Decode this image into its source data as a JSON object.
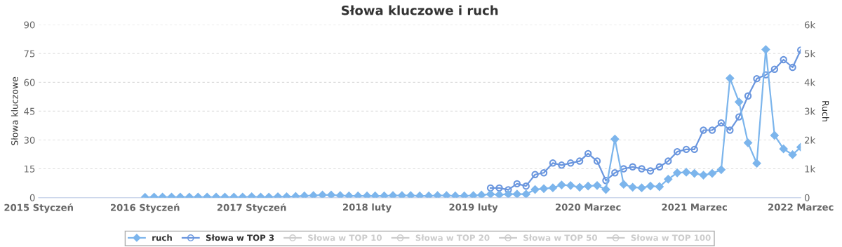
{
  "chart_data": {
    "type": "line",
    "title": "Słowa kluczowe i ruch",
    "ylabel": "Słowa kluczowe",
    "y2label": "Ruch",
    "xlim": [
      "2015-01",
      "2022-03"
    ],
    "xticks": [
      {
        "value": "2015-01",
        "label": "2015 Styczeń"
      },
      {
        "value": "2016-01",
        "label": "2016 Styczeń"
      },
      {
        "value": "2017-01",
        "label": "2017 Styczeń"
      },
      {
        "value": "2018-02",
        "label": "2018 luty"
      },
      {
        "value": "2019-02",
        "label": "2019 luty"
      },
      {
        "value": "2020-03",
        "label": "2020 Marzec"
      },
      {
        "value": "2021-03",
        "label": "2021 Marzec"
      },
      {
        "value": "2022-03",
        "label": "2022 Marzec"
      }
    ],
    "ylim": [
      0,
      90
    ],
    "yticks": [
      0,
      15,
      30,
      45,
      60,
      75,
      90
    ],
    "y2lim": [
      0,
      6000
    ],
    "y2ticks": [
      0,
      {
        "value": 1000,
        "label": "1k"
      },
      {
        "value": 2000,
        "label": "2k"
      },
      {
        "value": 3000,
        "label": "3k"
      },
      {
        "value": 4000,
        "label": "4k"
      },
      {
        "value": 5000,
        "label": "5k"
      },
      {
        "value": 6000,
        "label": "6k"
      }
    ],
    "grid": "y",
    "legend": "bottom",
    "series": [
      {
        "name": "ruch",
        "color": "#7cb5ec",
        "axis": "y2",
        "marker": "diamond",
        "x": [
          "2016-01",
          "2016-02",
          "2016-03",
          "2016-04",
          "2016-05",
          "2016-06",
          "2016-07",
          "2016-08",
          "2016-09",
          "2016-10",
          "2016-11",
          "2016-12",
          "2017-01",
          "2017-02",
          "2017-03",
          "2017-04",
          "2017-05",
          "2017-06",
          "2017-07",
          "2017-08",
          "2017-09",
          "2017-10",
          "2017-11",
          "2017-12",
          "2018-01",
          "2018-02",
          "2018-03",
          "2018-04",
          "2018-05",
          "2018-06",
          "2018-07",
          "2018-08",
          "2018-09",
          "2018-10",
          "2018-11",
          "2018-12",
          "2019-01",
          "2019-02",
          "2019-03",
          "2019-04",
          "2019-05",
          "2019-06",
          "2019-07",
          "2019-08",
          "2019-09",
          "2019-10",
          "2019-11",
          "2019-12",
          "2020-01",
          "2020-02",
          "2020-03",
          "2020-04",
          "2020-05",
          "2020-06",
          "2020-07",
          "2020-08",
          "2020-09",
          "2020-10",
          "2020-11",
          "2020-12",
          "2021-01",
          "2021-02",
          "2021-03",
          "2021-04",
          "2021-05",
          "2021-06",
          "2021-07",
          "2021-08",
          "2021-09",
          "2021-10",
          "2021-11",
          "2021-12",
          "2022-01",
          "2022-02",
          "2022-03"
        ],
        "values": [
          10,
          20,
          20,
          20,
          20,
          20,
          20,
          20,
          20,
          20,
          20,
          20,
          30,
          20,
          20,
          30,
          30,
          40,
          60,
          70,
          90,
          90,
          70,
          60,
          60,
          60,
          60,
          60,
          70,
          70,
          70,
          60,
          60,
          70,
          70,
          60,
          60,
          70,
          90,
          120,
          100,
          120,
          120,
          120,
          280,
          310,
          340,
          440,
          420,
          360,
          400,
          420,
          280,
          2030,
          460,
          360,
          340,
          400,
          380,
          640,
          860,
          880,
          840,
          780,
          840,
          970,
          4140,
          3320,
          1900,
          1190,
          5140,
          2160,
          1690,
          1490,
          1750
        ]
      },
      {
        "name": "Słowa w TOP 3",
        "color": "#6a96de",
        "axis": "y",
        "marker": "circle",
        "x": [
          "2019-04",
          "2019-05",
          "2019-06",
          "2019-07",
          "2019-08",
          "2019-09",
          "2019-10",
          "2019-11",
          "2019-12",
          "2020-01",
          "2020-02",
          "2020-03",
          "2020-04",
          "2020-05",
          "2020-06",
          "2020-07",
          "2020-08",
          "2020-09",
          "2020-10",
          "2020-11",
          "2020-12",
          "2021-01",
          "2021-02",
          "2021-03",
          "2021-04",
          "2021-05",
          "2021-06",
          "2021-07",
          "2021-08",
          "2021-09",
          "2021-10",
          "2021-11",
          "2021-12",
          "2022-01",
          "2022-02",
          "2022-03"
        ],
        "values": [
          5.0,
          5.0,
          4.1,
          7.2,
          6.0,
          12.0,
          12.9,
          18.0,
          16.9,
          18.0,
          19.0,
          22.9,
          19.0,
          8.9,
          12.9,
          15.0,
          16.0,
          15.0,
          13.9,
          16.0,
          19.0,
          23.9,
          25.1,
          25.1,
          35.1,
          35.1,
          38.9,
          35.1,
          42.0,
          52.9,
          61.9,
          63.9,
          66.8,
          71.8,
          67.8,
          76.8
        ]
      },
      {
        "name": "Słowa w TOP 10",
        "color": "#cccccc",
        "axis": "y",
        "marker": "circle"
      },
      {
        "name": "Słowa w TOP 20",
        "color": "#cccccc",
        "axis": "y",
        "marker": "circle"
      },
      {
        "name": "Słowa w TOP 50",
        "color": "#cccccc",
        "axis": "y",
        "marker": "circle"
      },
      {
        "name": "Słowa w TOP 100",
        "color": "#cccccc",
        "axis": "y",
        "marker": "circle"
      }
    ]
  }
}
